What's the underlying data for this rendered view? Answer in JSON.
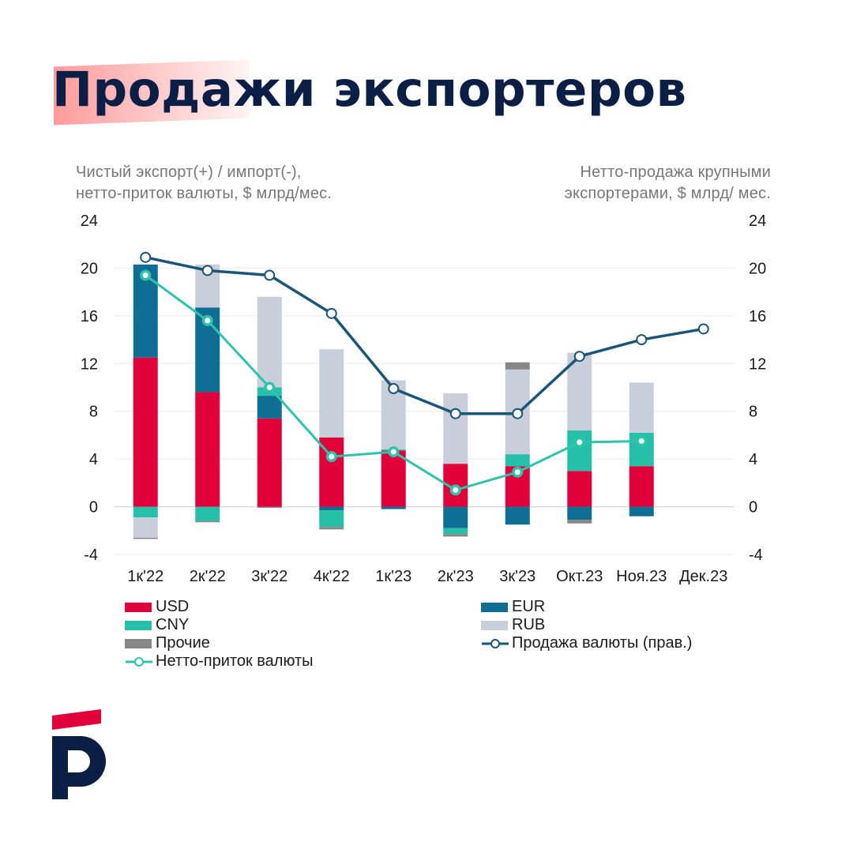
{
  "title": "Продажи экспортеров",
  "left_axis_note": [
    "Чистый экспорт(+) / импорт(-),",
    "нетто-приток валюты, $ млрд/мес."
  ],
  "right_axis_note": [
    "Нетто-продажа крупными",
    "экспортерами, $ млрд/ мес."
  ],
  "chart_data": {
    "type": "bar",
    "stacked": true,
    "categories": [
      "1к'22",
      "2к'22",
      "3к'22",
      "4к'22",
      "1к'23",
      "2к'23",
      "3к'23",
      "Окт.23",
      "Ноя.23",
      "Дек.23"
    ],
    "series": [
      {
        "name": "USD",
        "color": "#e2003b",
        "values": [
          12.5,
          9.6,
          7.4,
          5.8,
          4.7,
          3.6,
          3.4,
          3.0,
          3.4,
          null
        ]
      },
      {
        "name": "EUR",
        "color": "#0f6e94",
        "values": [
          7.8,
          7.1,
          1.9,
          -0.3,
          -0.2,
          -1.8,
          -1.5,
          -1.1,
          -0.8,
          null
        ]
      },
      {
        "name": "CNY",
        "color": "#26bfa8",
        "values": [
          -0.9,
          -1.2,
          0.7,
          -1.4,
          0.1,
          -0.5,
          1.0,
          3.4,
          2.8,
          null
        ]
      },
      {
        "name": "RUB",
        "color": "#c8ceda",
        "values": [
          -1.7,
          3.6,
          7.6,
          7.4,
          5.8,
          5.9,
          7.1,
          6.5,
          4.2,
          null
        ]
      },
      {
        "name": "Прочие",
        "color": "#878787",
        "values": [
          -0.1,
          -0.1,
          -0.1,
          -0.2,
          0.0,
          -0.2,
          0.6,
          -0.3,
          0.0,
          null
        ]
      }
    ],
    "lines": [
      {
        "name": "Нетто-приток валюты",
        "color": "#2ec4ac",
        "axis": "left",
        "marker": "filled",
        "values": [
          19.4,
          15.6,
          10.0,
          4.2,
          4.6,
          1.4,
          2.9,
          5.4,
          5.5,
          null
        ]
      },
      {
        "name": "Продажа валюты (прав.)",
        "color": "#1b5578",
        "axis": "right",
        "marker": "hollow",
        "values": [
          20.9,
          19.8,
          19.4,
          16.2,
          9.9,
          7.8,
          7.8,
          12.6,
          14.0,
          14.9
        ]
      }
    ],
    "ylim": [
      -4,
      24
    ],
    "yticks": [
      24,
      20,
      16,
      12,
      8,
      4,
      0,
      -4
    ],
    "y2lim": [
      -4,
      24
    ],
    "y2ticks": [
      24,
      20,
      16,
      12,
      8,
      4,
      0,
      -4
    ],
    "grid": "horizontal"
  },
  "legend": {
    "col1": [
      {
        "label": "USD",
        "kind": "bar",
        "color": "#e2003b"
      },
      {
        "label": "CNY",
        "kind": "bar",
        "color": "#26bfa8"
      },
      {
        "label": "Прочие",
        "kind": "bar",
        "color": "#878787"
      },
      {
        "label": "Нетто-приток валюты",
        "kind": "line",
        "color": "#2ec4ac"
      }
    ],
    "col2": [
      {
        "label": "EUR",
        "kind": "bar",
        "color": "#0f6e94"
      },
      {
        "label": "RUB",
        "kind": "bar",
        "color": "#c8ceda"
      },
      {
        "label": "Продажа валюты (прав.)",
        "kind": "line",
        "color": "#1b5578"
      }
    ]
  },
  "brand": {
    "logo": "p-logo-icon",
    "navy": "#0a1e46",
    "red": "#e2003b"
  }
}
